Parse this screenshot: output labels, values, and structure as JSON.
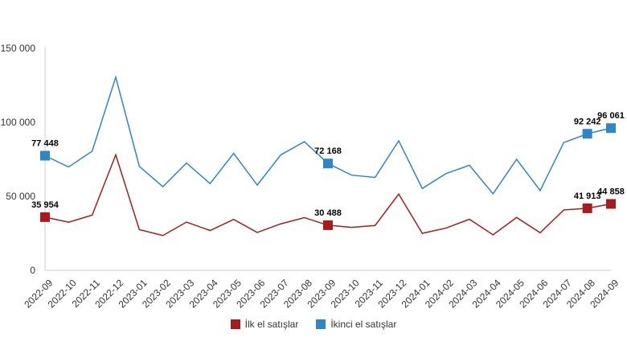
{
  "chart_data": {
    "type": "line",
    "categories": [
      "2022-09",
      "2022-10",
      "2022-11",
      "2022-12",
      "2023-01",
      "2023-02",
      "2023-03",
      "2023-04",
      "2023-05",
      "2023-06",
      "2023-07",
      "2023-08",
      "2023-09",
      "2023-10",
      "2023-11",
      "2023-12",
      "2024-01",
      "2024-02",
      "2024-03",
      "2024-04",
      "2024-05",
      "2024-06",
      "2024-07",
      "2024-08",
      "2024-09"
    ],
    "ylim": [
      0,
      150000
    ],
    "yticks": [
      0,
      50000,
      100000,
      150000
    ],
    "ytick_labels": [
      "0",
      "50 000",
      "100 000",
      "150 000"
    ],
    "grid": false,
    "legend_position": "bottom",
    "series": [
      {
        "name": "İlk el satışlar",
        "color": "#a61c1c",
        "values": [
          35954,
          32500,
          37300,
          78000,
          27500,
          23500,
          32600,
          26900,
          34400,
          25600,
          31400,
          35600,
          30488,
          29000,
          30300,
          51500,
          25000,
          28500,
          34500,
          24000,
          35700,
          25400,
          40800,
          41913,
          44858
        ],
        "labeled_points": [
          0,
          12,
          23,
          24
        ],
        "labels": [
          "35 954",
          "30 488",
          "41 913",
          "44 858"
        ]
      },
      {
        "name": "İkinci el satışlar",
        "color": "#2e86c8",
        "values": [
          77448,
          69800,
          80500,
          130500,
          70200,
          56500,
          72500,
          58600,
          79000,
          57600,
          78000,
          86900,
          72168,
          64300,
          62800,
          87500,
          55300,
          65300,
          71000,
          51700,
          75000,
          53900,
          86300,
          92242,
          96061
        ],
        "labeled_points": [
          0,
          12,
          23,
          24
        ],
        "labels": [
          "77 448",
          "72 168",
          "92 242",
          "96 061"
        ]
      }
    ]
  }
}
